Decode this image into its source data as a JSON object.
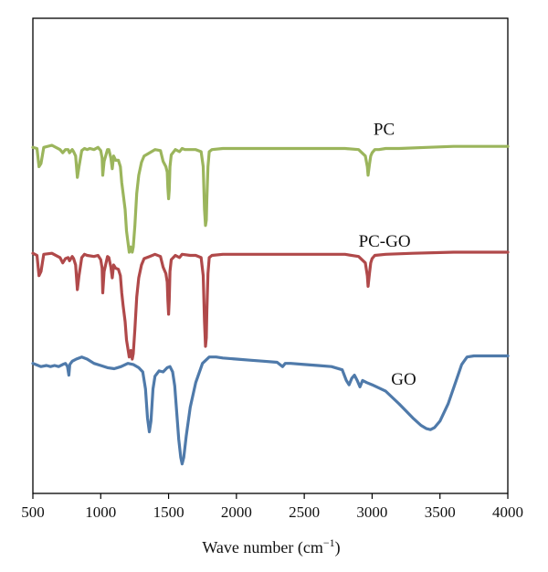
{
  "chart_data": {
    "type": "line",
    "xlabel": "Wave number (cm",
    "xlabel_sup": "−1",
    "xlabel_tail": ")",
    "xlim": [
      500,
      4000
    ],
    "x_ticks": [
      "500",
      "1000",
      "1500",
      "2000",
      "2500",
      "3000",
      "3500",
      "4000"
    ],
    "ylabel": "",
    "y_ticks_shown": false,
    "grid": false,
    "series": [
      {
        "name": "PC",
        "color": "#9bb55c",
        "offset": 2.0,
        "points": [
          [
            500,
            0.98
          ],
          [
            530,
            0.97
          ],
          [
            545,
            0.8
          ],
          [
            560,
            0.83
          ],
          [
            580,
            0.98
          ],
          [
            640,
            1.0
          ],
          [
            700,
            0.96
          ],
          [
            720,
            0.93
          ],
          [
            740,
            0.96
          ],
          [
            760,
            0.96
          ],
          [
            770,
            0.93
          ],
          [
            790,
            0.96
          ],
          [
            800,
            0.94
          ],
          [
            815,
            0.9
          ],
          [
            828,
            0.7
          ],
          [
            840,
            0.8
          ],
          [
            860,
            0.95
          ],
          [
            880,
            0.97
          ],
          [
            900,
            0.96
          ],
          [
            920,
            0.97
          ],
          [
            950,
            0.96
          ],
          [
            980,
            0.98
          ],
          [
            1000,
            0.95
          ],
          [
            1010,
            0.88
          ],
          [
            1015,
            0.72
          ],
          [
            1025,
            0.85
          ],
          [
            1050,
            0.96
          ],
          [
            1060,
            0.96
          ],
          [
            1075,
            0.88
          ],
          [
            1085,
            0.78
          ],
          [
            1095,
            0.9
          ],
          [
            1110,
            0.86
          ],
          [
            1130,
            0.86
          ],
          [
            1145,
            0.8
          ],
          [
            1155,
            0.65
          ],
          [
            1165,
            0.55
          ],
          [
            1180,
            0.4
          ],
          [
            1190,
            0.2
          ],
          [
            1200,
            0.1
          ],
          [
            1210,
            0.0
          ],
          [
            1220,
            0.05
          ],
          [
            1232,
            0.0
          ],
          [
            1240,
            0.05
          ],
          [
            1252,
            0.25
          ],
          [
            1265,
            0.55
          ],
          [
            1280,
            0.72
          ],
          [
            1300,
            0.84
          ],
          [
            1320,
            0.9
          ],
          [
            1360,
            0.93
          ],
          [
            1400,
            0.96
          ],
          [
            1440,
            0.95
          ],
          [
            1460,
            0.85
          ],
          [
            1480,
            0.8
          ],
          [
            1490,
            0.75
          ],
          [
            1495,
            0.6
          ],
          [
            1500,
            0.5
          ],
          [
            1505,
            0.58
          ],
          [
            1510,
            0.8
          ],
          [
            1520,
            0.91
          ],
          [
            1550,
            0.96
          ],
          [
            1580,
            0.94
          ],
          [
            1600,
            0.97
          ],
          [
            1620,
            0.96
          ],
          [
            1660,
            0.96
          ],
          [
            1700,
            0.96
          ],
          [
            1740,
            0.94
          ],
          [
            1755,
            0.8
          ],
          [
            1765,
            0.4
          ],
          [
            1772,
            0.25
          ],
          [
            1778,
            0.3
          ],
          [
            1782,
            0.5
          ],
          [
            1790,
            0.8
          ],
          [
            1800,
            0.94
          ],
          [
            1820,
            0.96
          ],
          [
            1900,
            0.97
          ],
          [
            2000,
            0.97
          ],
          [
            2200,
            0.97
          ],
          [
            2400,
            0.97
          ],
          [
            2600,
            0.97
          ],
          [
            2800,
            0.97
          ],
          [
            2900,
            0.96
          ],
          [
            2950,
            0.9
          ],
          [
            2965,
            0.8
          ],
          [
            2970,
            0.72
          ],
          [
            2980,
            0.82
          ],
          [
            2990,
            0.9
          ],
          [
            3000,
            0.93
          ],
          [
            3020,
            0.96
          ],
          [
            3050,
            0.96
          ],
          [
            3100,
            0.97
          ],
          [
            3200,
            0.97
          ],
          [
            3400,
            0.98
          ],
          [
            3600,
            0.99
          ],
          [
            3800,
            0.99
          ],
          [
            4000,
            0.99
          ]
        ]
      },
      {
        "name": "PC-GO",
        "color": "#b0494a",
        "offset": 1.0,
        "points": [
          [
            500,
            0.99
          ],
          [
            530,
            0.97
          ],
          [
            545,
            0.78
          ],
          [
            560,
            0.82
          ],
          [
            580,
            0.98
          ],
          [
            640,
            0.99
          ],
          [
            700,
            0.95
          ],
          [
            720,
            0.9
          ],
          [
            740,
            0.94
          ],
          [
            760,
            0.95
          ],
          [
            770,
            0.92
          ],
          [
            790,
            0.96
          ],
          [
            800,
            0.94
          ],
          [
            815,
            0.88
          ],
          [
            828,
            0.65
          ],
          [
            840,
            0.78
          ],
          [
            860,
            0.95
          ],
          [
            880,
            0.98
          ],
          [
            900,
            0.97
          ],
          [
            950,
            0.96
          ],
          [
            980,
            0.97
          ],
          [
            1000,
            0.93
          ],
          [
            1010,
            0.85
          ],
          [
            1015,
            0.62
          ],
          [
            1025,
            0.82
          ],
          [
            1050,
            0.96
          ],
          [
            1060,
            0.95
          ],
          [
            1075,
            0.86
          ],
          [
            1085,
            0.76
          ],
          [
            1095,
            0.88
          ],
          [
            1110,
            0.85
          ],
          [
            1130,
            0.84
          ],
          [
            1145,
            0.78
          ],
          [
            1155,
            0.62
          ],
          [
            1165,
            0.5
          ],
          [
            1180,
            0.35
          ],
          [
            1190,
            0.18
          ],
          [
            1200,
            0.1
          ],
          [
            1210,
            0.02
          ],
          [
            1222,
            0.08
          ],
          [
            1232,
            0.0
          ],
          [
            1240,
            0.05
          ],
          [
            1252,
            0.28
          ],
          [
            1265,
            0.58
          ],
          [
            1280,
            0.76
          ],
          [
            1300,
            0.88
          ],
          [
            1320,
            0.94
          ],
          [
            1360,
            0.96
          ],
          [
            1400,
            0.98
          ],
          [
            1440,
            0.96
          ],
          [
            1460,
            0.86
          ],
          [
            1480,
            0.8
          ],
          [
            1490,
            0.72
          ],
          [
            1495,
            0.55
          ],
          [
            1500,
            0.42
          ],
          [
            1505,
            0.55
          ],
          [
            1510,
            0.82
          ],
          [
            1520,
            0.93
          ],
          [
            1550,
            0.97
          ],
          [
            1580,
            0.95
          ],
          [
            1600,
            0.98
          ],
          [
            1660,
            0.97
          ],
          [
            1700,
            0.97
          ],
          [
            1740,
            0.95
          ],
          [
            1755,
            0.78
          ],
          [
            1765,
            0.35
          ],
          [
            1772,
            0.12
          ],
          [
            1778,
            0.2
          ],
          [
            1782,
            0.45
          ],
          [
            1790,
            0.8
          ],
          [
            1800,
            0.95
          ],
          [
            1820,
            0.97
          ],
          [
            1900,
            0.98
          ],
          [
            2000,
            0.98
          ],
          [
            2200,
            0.98
          ],
          [
            2400,
            0.98
          ],
          [
            2600,
            0.98
          ],
          [
            2800,
            0.98
          ],
          [
            2900,
            0.96
          ],
          [
            2950,
            0.9
          ],
          [
            2965,
            0.78
          ],
          [
            2970,
            0.68
          ],
          [
            2980,
            0.8
          ],
          [
            2990,
            0.9
          ],
          [
            3000,
            0.94
          ],
          [
            3020,
            0.97
          ],
          [
            3100,
            0.98
          ],
          [
            3300,
            0.99
          ],
          [
            3600,
            1.0
          ],
          [
            4000,
            1.0
          ]
        ]
      },
      {
        "name": "GO",
        "color": "#4f7aaa",
        "offset": 0.0,
        "points": [
          [
            500,
            0.96
          ],
          [
            520,
            0.95
          ],
          [
            560,
            0.93
          ],
          [
            600,
            0.94
          ],
          [
            630,
            0.93
          ],
          [
            660,
            0.94
          ],
          [
            690,
            0.93
          ],
          [
            720,
            0.95
          ],
          [
            740,
            0.96
          ],
          [
            755,
            0.93
          ],
          [
            765,
            0.85
          ],
          [
            772,
            0.95
          ],
          [
            790,
            0.98
          ],
          [
            820,
            1.0
          ],
          [
            860,
            1.02
          ],
          [
            900,
            1.0
          ],
          [
            950,
            0.96
          ],
          [
            1000,
            0.94
          ],
          [
            1050,
            0.92
          ],
          [
            1100,
            0.91
          ],
          [
            1150,
            0.93
          ],
          [
            1200,
            0.96
          ],
          [
            1240,
            0.95
          ],
          [
            1280,
            0.92
          ],
          [
            1310,
            0.88
          ],
          [
            1330,
            0.72
          ],
          [
            1345,
            0.45
          ],
          [
            1358,
            0.32
          ],
          [
            1370,
            0.42
          ],
          [
            1385,
            0.72
          ],
          [
            1400,
            0.84
          ],
          [
            1430,
            0.89
          ],
          [
            1460,
            0.88
          ],
          [
            1490,
            0.92
          ],
          [
            1510,
            0.93
          ],
          [
            1530,
            0.88
          ],
          [
            1545,
            0.75
          ],
          [
            1560,
            0.5
          ],
          [
            1575,
            0.25
          ],
          [
            1590,
            0.08
          ],
          [
            1600,
            0.02
          ],
          [
            1612,
            0.08
          ],
          [
            1630,
            0.28
          ],
          [
            1660,
            0.55
          ],
          [
            1700,
            0.78
          ],
          [
            1750,
            0.96
          ],
          [
            1800,
            1.02
          ],
          [
            1850,
            1.02
          ],
          [
            1900,
            1.01
          ],
          [
            2000,
            1.0
          ],
          [
            2100,
            0.99
          ],
          [
            2200,
            0.98
          ],
          [
            2300,
            0.97
          ],
          [
            2340,
            0.93
          ],
          [
            2360,
            0.96
          ],
          [
            2400,
            0.96
          ],
          [
            2500,
            0.95
          ],
          [
            2600,
            0.94
          ],
          [
            2700,
            0.93
          ],
          [
            2780,
            0.9
          ],
          [
            2810,
            0.8
          ],
          [
            2830,
            0.76
          ],
          [
            2850,
            0.82
          ],
          [
            2870,
            0.85
          ],
          [
            2890,
            0.8
          ],
          [
            2910,
            0.74
          ],
          [
            2930,
            0.8
          ],
          [
            2960,
            0.78
          ],
          [
            3000,
            0.76
          ],
          [
            3100,
            0.7
          ],
          [
            3200,
            0.58
          ],
          [
            3300,
            0.45
          ],
          [
            3360,
            0.38
          ],
          [
            3400,
            0.35
          ],
          [
            3430,
            0.34
          ],
          [
            3460,
            0.36
          ],
          [
            3500,
            0.42
          ],
          [
            3560,
            0.58
          ],
          [
            3620,
            0.8
          ],
          [
            3660,
            0.95
          ],
          [
            3700,
            1.02
          ],
          [
            3750,
            1.03
          ],
          [
            3850,
            1.03
          ],
          [
            4000,
            1.03
          ]
        ]
      }
    ],
    "series_labels": [
      {
        "text": "PC",
        "x": 3010,
        "y": 3.1
      },
      {
        "text": "PC-GO",
        "x": 2900,
        "y": 2.05
      },
      {
        "text": "GO",
        "x": 3140,
        "y": 0.76
      }
    ]
  }
}
